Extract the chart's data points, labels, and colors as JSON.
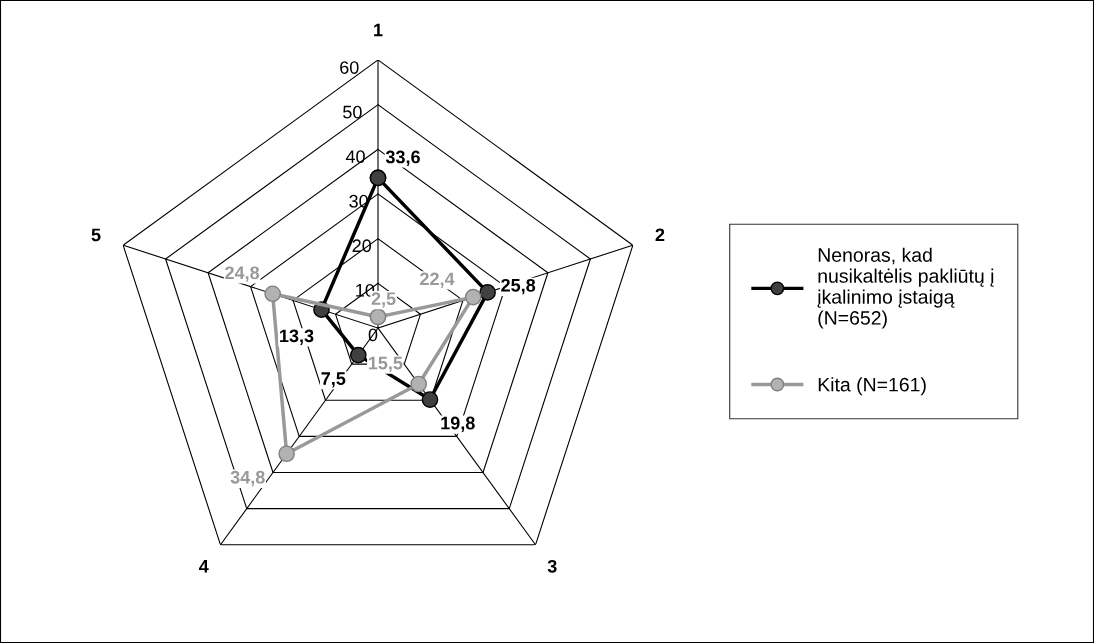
{
  "chart_data": {
    "type": "radar",
    "categories": [
      "1",
      "2",
      "3",
      "4",
      "5"
    ],
    "ylim": [
      0,
      60
    ],
    "yticks": [
      0,
      10,
      20,
      30,
      40,
      50,
      60
    ],
    "grid": true,
    "legend": "right",
    "marker": "circle",
    "line_style": "solid",
    "series": [
      {
        "name": "Nenoras, kad\nnusikaltėlis pakliūtų į\nįkalinimo įstaigą\n(N=652)",
        "color": "#000000",
        "values": [
          33.6,
          25.8,
          19.8,
          7.5,
          13.3
        ],
        "value_labels": [
          "33,6",
          "25,8",
          "19,8",
          "7,5",
          "13,3"
        ]
      },
      {
        "name": "Kita (N=161)",
        "color": "#999999",
        "values": [
          2.5,
          22.4,
          15.5,
          34.8,
          24.8
        ],
        "value_labels": [
          "2,5",
          "22,4",
          "15,5",
          "34,8",
          "24,8"
        ]
      }
    ]
  }
}
